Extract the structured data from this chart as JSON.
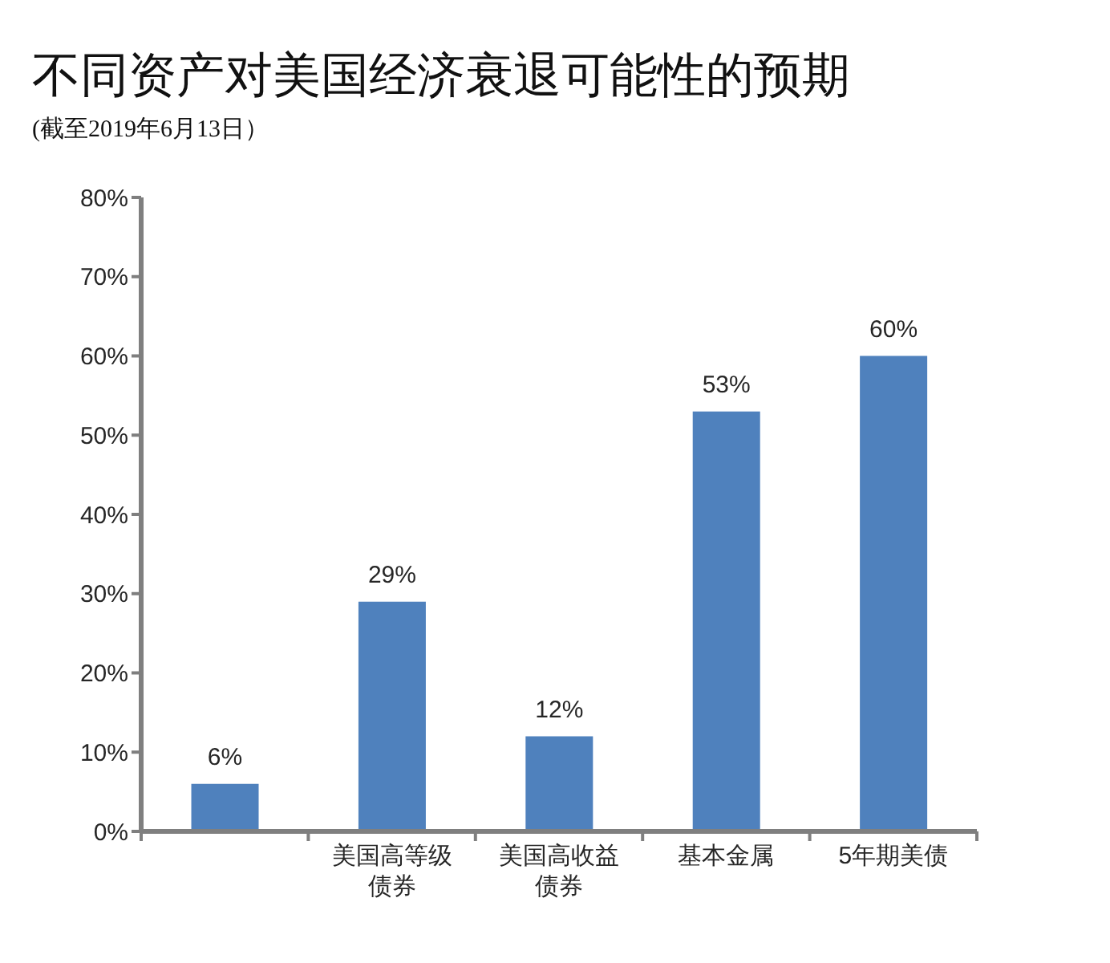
{
  "chart_data": {
    "type": "bar",
    "title": "不同资产对美国经济衰退可能性的预期",
    "subtitle": "(截至2019年6月13日）",
    "categories": [
      null,
      "美国高等级债券",
      "美国高收益债券",
      "基本金属",
      "5年期美债"
    ],
    "values": [
      6,
      29,
      12,
      53,
      60
    ],
    "color": "#4f81bd",
    "value_labels": [
      "6%",
      "29%",
      "12%",
      "53%",
      "60%"
    ],
    "ylim": [
      0,
      80
    ],
    "yticks": [
      {
        "value": 0,
        "label": "0%"
      },
      {
        "value": 10,
        "label": "10%"
      },
      {
        "value": 20,
        "label": "20%"
      },
      {
        "value": 30,
        "label": "30%"
      },
      {
        "value": 40,
        "label": "40%"
      },
      {
        "value": 50,
        "label": "50%"
      },
      {
        "value": 60,
        "label": "60%"
      },
      {
        "value": 70,
        "label": "70%"
      },
      {
        "value": 80,
        "label": "80%"
      }
    ]
  }
}
